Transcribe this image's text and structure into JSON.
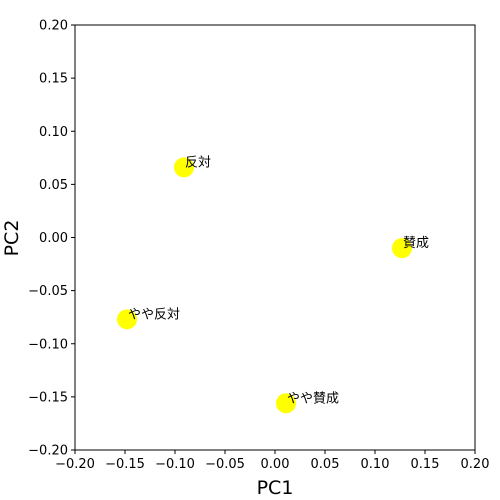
{
  "chart_data": {
    "type": "scatter",
    "title": "",
    "xlabel": "PC1",
    "ylabel": "PC2",
    "xlim": [
      -0.2,
      0.2
    ],
    "ylim": [
      -0.2,
      0.2
    ],
    "xticks": [
      "−0.20",
      "−0.15",
      "−0.10",
      "−0.05",
      "0.00",
      "0.05",
      "0.10",
      "0.15",
      "0.20"
    ],
    "yticks": [
      "−0.20",
      "−0.15",
      "−0.10",
      "−0.05",
      "0.00",
      "0.05",
      "0.10",
      "0.15",
      "0.20"
    ],
    "grid": false,
    "marker_color": "#ffff00",
    "points": [
      {
        "x": -0.091,
        "y": 0.066,
        "label": "反対"
      },
      {
        "x": 0.127,
        "y": -0.01,
        "label": "賛成"
      },
      {
        "x": -0.148,
        "y": -0.077,
        "label": "やや反対"
      },
      {
        "x": 0.011,
        "y": -0.156,
        "label": "やや賛成"
      }
    ]
  }
}
